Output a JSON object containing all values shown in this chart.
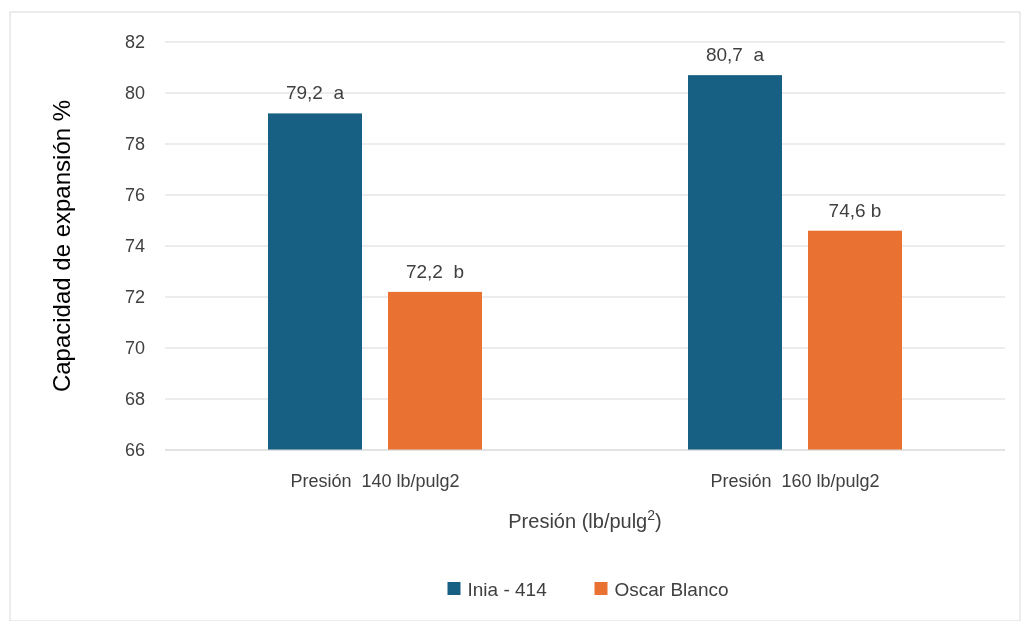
{
  "chart_data": {
    "type": "bar",
    "categories": [
      "Presión  140 lb/pulg2",
      "Presión  160 lb/pulg2"
    ],
    "series": [
      {
        "name": "Inia - 414",
        "color": "#176083",
        "values": [
          79.2,
          80.7
        ],
        "value_labels": [
          "79,2  a",
          "80,7  a"
        ]
      },
      {
        "name": "Oscar Blanco",
        "color": "#e97132",
        "values": [
          72.2,
          74.6
        ],
        "value_labels": [
          "72,2  b",
          "74,6 b"
        ]
      }
    ],
    "xlabel": "Presión (lb/pulg$^{2}$)",
    "ylabel": "Capacidad de expansión %",
    "ylim": [
      66,
      82
    ],
    "yticks": [
      66,
      68,
      70,
      72,
      74,
      76,
      78,
      80,
      82
    ],
    "grid": "y",
    "legend": "bottom"
  }
}
